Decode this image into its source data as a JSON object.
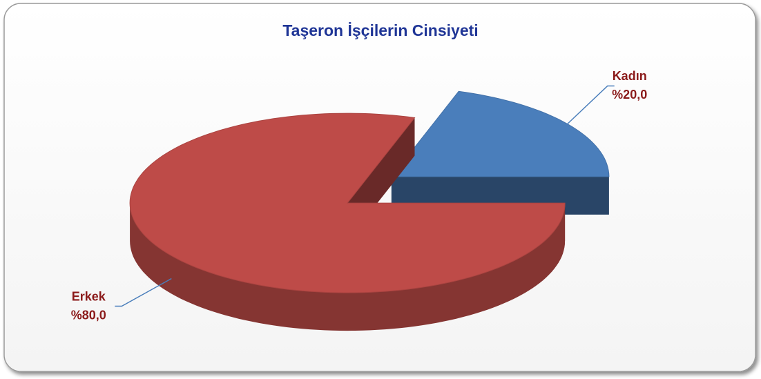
{
  "chart_data": {
    "type": "pie",
    "title": "Taşeron İşçilerin Cinsiyeti",
    "categories": [
      "Kadın",
      "Erkek"
    ],
    "values": [
      20,
      80
    ],
    "value_labels": [
      "%20,0",
      "%80,0"
    ],
    "colors": [
      "#4a7ebb",
      "#be4b48"
    ]
  }
}
